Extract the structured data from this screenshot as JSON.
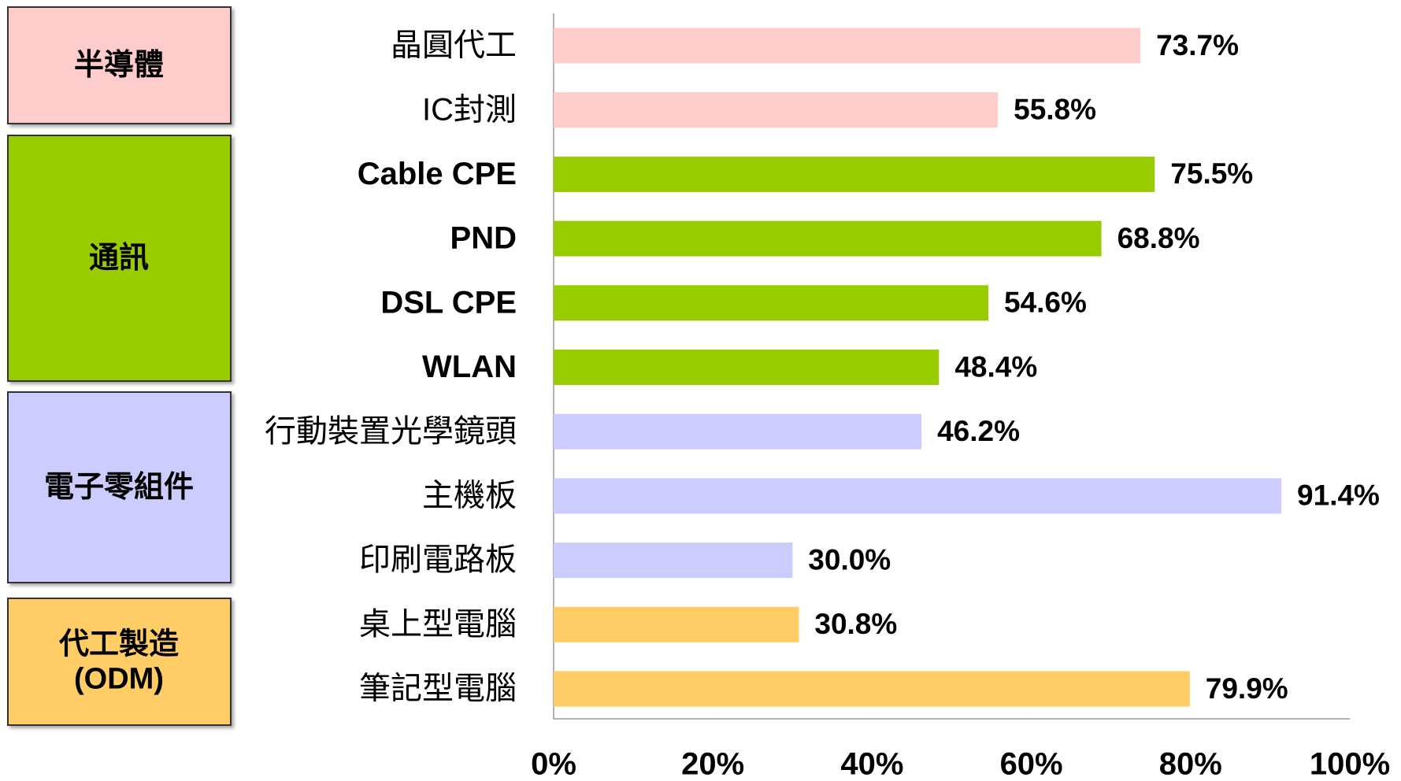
{
  "chart_data": {
    "type": "bar",
    "orientation": "horizontal",
    "categories": [
      "晶圓代工",
      "IC封測",
      "Cable CPE",
      "PND",
      "DSL CPE",
      "WLAN",
      "行動裝置光學鏡頭",
      "主機板",
      "印刷電路板",
      "桌上型電腦",
      "筆記型電腦"
    ],
    "values": [
      73.7,
      55.8,
      75.5,
      68.8,
      54.6,
      48.4,
      46.2,
      91.4,
      30.0,
      30.8,
      79.9
    ],
    "value_labels": [
      "73.7%",
      "55.8%",
      "75.5%",
      "68.8%",
      "54.6%",
      "48.4%",
      "46.2%",
      "91.4%",
      "30.0%",
      "30.8%",
      "79.9%"
    ],
    "colors": [
      "#ffcccc",
      "#ffcccc",
      "#99cc00",
      "#99cc00",
      "#99cc00",
      "#99cc00",
      "#ccccff",
      "#ccccff",
      "#ccccff",
      "#ffcc66",
      "#ffcc66"
    ],
    "groups": [
      {
        "lines": [
          "半導體"
        ],
        "color": "#ffcccc"
      },
      {
        "lines": [
          "通訊"
        ],
        "color": "#99cc00"
      },
      {
        "lines": [
          "電子零組件"
        ],
        "color": "#ccccff"
      },
      {
        "lines": [
          "代工製造",
          "(ODM)"
        ],
        "color": "#ffcc66"
      }
    ],
    "xlim": [
      0,
      100
    ],
    "xticks": [
      {
        "value": 0,
        "label": "0%"
      },
      {
        "value": 20,
        "label": "20%"
      },
      {
        "value": 40,
        "label": "40%"
      },
      {
        "value": 60,
        "label": "60%"
      },
      {
        "value": 80,
        "label": "80%"
      },
      {
        "value": 100,
        "label": "100%"
      }
    ]
  }
}
